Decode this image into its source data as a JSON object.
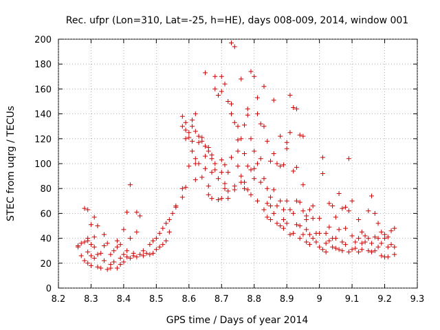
{
  "chart_data": {
    "type": "scatter",
    "title": "Rec. ufpr (Lon=310, Lat=-25, h=HE), days 008-009, 2014, window 001",
    "xlabel": "GPS time / Days of year 2014",
    "ylabel": "STEC from uqrg / TECUs",
    "xlim": [
      8.2,
      9.3
    ],
    "ylim": [
      0,
      200
    ],
    "x_ticks": [
      8.2,
      8.3,
      8.4,
      8.5,
      8.6,
      8.7,
      8.8,
      8.9,
      9.0,
      9.1,
      9.2,
      9.3
    ],
    "x_tick_labels": [
      "8.2",
      "8.3",
      "8.4",
      "8.5",
      "8.6",
      "8.7",
      "8.8",
      "8.9",
      "9",
      "9.1",
      "9.2",
      "9.3"
    ],
    "y_ticks": [
      0,
      20,
      40,
      60,
      80,
      100,
      120,
      140,
      160,
      180,
      200
    ],
    "y_tick_labels": [
      "0",
      "20",
      "40",
      "60",
      "80",
      "100",
      "120",
      "140",
      "160",
      "180",
      "200"
    ],
    "grid": true,
    "marker": "+",
    "color": "#cc0000",
    "series": [
      {
        "name": "STEC",
        "points": [
          [
            8.26,
            34
          ],
          [
            8.26,
            33
          ],
          [
            8.27,
            36
          ],
          [
            8.27,
            26
          ],
          [
            8.28,
            37
          ],
          [
            8.28,
            22
          ],
          [
            8.28,
            64
          ],
          [
            8.29,
            38
          ],
          [
            8.29,
            40
          ],
          [
            8.29,
            29
          ],
          [
            8.29,
            20
          ],
          [
            8.29,
            63
          ],
          [
            8.3,
            51
          ],
          [
            8.3,
            35
          ],
          [
            8.3,
            26
          ],
          [
            8.3,
            18
          ],
          [
            8.31,
            41
          ],
          [
            8.31,
            33
          ],
          [
            8.31,
            57
          ],
          [
            8.31,
            24
          ],
          [
            8.32,
            17
          ],
          [
            8.32,
            50
          ],
          [
            8.32,
            27
          ],
          [
            8.33,
            28
          ],
          [
            8.33,
            16
          ],
          [
            8.34,
            43
          ],
          [
            8.34,
            34
          ],
          [
            8.34,
            22
          ],
          [
            8.35,
            15
          ],
          [
            8.35,
            36
          ],
          [
            8.36,
            27
          ],
          [
            8.36,
            19
          ],
          [
            8.36,
            16
          ],
          [
            8.37,
            21
          ],
          [
            8.37,
            30
          ],
          [
            8.38,
            16
          ],
          [
            8.38,
            38
          ],
          [
            8.38,
            33
          ],
          [
            8.39,
            35
          ],
          [
            8.39,
            19
          ],
          [
            8.39,
            24
          ],
          [
            8.4,
            47
          ],
          [
            8.4,
            27
          ],
          [
            8.4,
            21
          ],
          [
            8.41,
            61
          ],
          [
            8.41,
            30
          ],
          [
            8.41,
            25
          ],
          [
            8.42,
            83
          ],
          [
            8.42,
            40
          ],
          [
            8.42,
            24
          ],
          [
            8.43,
            26
          ],
          [
            8.43,
            28
          ],
          [
            8.44,
            61
          ],
          [
            8.44,
            45
          ],
          [
            8.44,
            25
          ],
          [
            8.45,
            58
          ],
          [
            8.45,
            27
          ],
          [
            8.46,
            30
          ],
          [
            8.46,
            26
          ],
          [
            8.47,
            28
          ],
          [
            8.48,
            35
          ],
          [
            8.48,
            27
          ],
          [
            8.49,
            38
          ],
          [
            8.49,
            28
          ],
          [
            8.5,
            31
          ],
          [
            8.5,
            40
          ],
          [
            8.51,
            44
          ],
          [
            8.51,
            33
          ],
          [
            8.52,
            48
          ],
          [
            8.52,
            35
          ],
          [
            8.53,
            52
          ],
          [
            8.53,
            38
          ],
          [
            8.54,
            55
          ],
          [
            8.54,
            45
          ],
          [
            8.55,
            60
          ],
          [
            8.56,
            65
          ],
          [
            8.56,
            66
          ],
          [
            8.58,
            73
          ],
          [
            8.58,
            80
          ],
          [
            8.58,
            130
          ],
          [
            8.58,
            138
          ],
          [
            8.59,
            81
          ],
          [
            8.59,
            120
          ],
          [
            8.59,
            133
          ],
          [
            8.59,
            127
          ],
          [
            8.6,
            98
          ],
          [
            8.6,
            121
          ],
          [
            8.6,
            125
          ],
          [
            8.61,
            118
          ],
          [
            8.61,
            110
          ],
          [
            8.61,
            135
          ],
          [
            8.61,
            130
          ],
          [
            8.62,
            140
          ],
          [
            8.62,
            104
          ],
          [
            8.62,
            100
          ],
          [
            8.62,
            126
          ],
          [
            8.62,
            87
          ],
          [
            8.63,
            117
          ],
          [
            8.63,
            122
          ],
          [
            8.63,
            100
          ],
          [
            8.64,
            89
          ],
          [
            8.64,
            121
          ],
          [
            8.64,
            118
          ],
          [
            8.65,
            173
          ],
          [
            8.65,
            114
          ],
          [
            8.65,
            106
          ],
          [
            8.65,
            96
          ],
          [
            8.66,
            82
          ],
          [
            8.66,
            75
          ],
          [
            8.66,
            113
          ],
          [
            8.66,
            110
          ],
          [
            8.67,
            93
          ],
          [
            8.67,
            107
          ],
          [
            8.67,
            104
          ],
          [
            8.67,
            72
          ],
          [
            8.68,
            160
          ],
          [
            8.68,
            170
          ],
          [
            8.68,
            100
          ],
          [
            8.68,
            95
          ],
          [
            8.69,
            71
          ],
          [
            8.69,
            88
          ],
          [
            8.69,
            155
          ],
          [
            8.7,
            170
          ],
          [
            8.7,
            158
          ],
          [
            8.7,
            103
          ],
          [
            8.7,
            93
          ],
          [
            8.7,
            72
          ],
          [
            8.71,
            164
          ],
          [
            8.71,
            84
          ],
          [
            8.71,
            99
          ],
          [
            8.71,
            80
          ],
          [
            8.72,
            150
          ],
          [
            8.72,
            93
          ],
          [
            8.72,
            78
          ],
          [
            8.72,
            72
          ],
          [
            8.73,
            197
          ],
          [
            8.73,
            105
          ],
          [
            8.73,
            148
          ],
          [
            8.73,
            140
          ],
          [
            8.74,
            194
          ],
          [
            8.74,
            133
          ],
          [
            8.74,
            82
          ],
          [
            8.74,
            79
          ],
          [
            8.75,
            130
          ],
          [
            8.75,
            119
          ],
          [
            8.75,
            110
          ],
          [
            8.75,
            98
          ],
          [
            8.76,
            168
          ],
          [
            8.76,
            120
          ],
          [
            8.76,
            90
          ],
          [
            8.76,
            85
          ],
          [
            8.77,
            85
          ],
          [
            8.77,
            80
          ],
          [
            8.77,
            108
          ],
          [
            8.77,
            131
          ],
          [
            8.78,
            144
          ],
          [
            8.78,
            139
          ],
          [
            8.78,
            98
          ],
          [
            8.78,
            79
          ],
          [
            8.79,
            174
          ],
          [
            8.79,
            120
          ],
          [
            8.79,
            75
          ],
          [
            8.79,
            95
          ],
          [
            8.8,
            170
          ],
          [
            8.8,
            110
          ],
          [
            8.8,
            88
          ],
          [
            8.8,
            96
          ],
          [
            8.81,
            153
          ],
          [
            8.81,
            140
          ],
          [
            8.81,
            100
          ],
          [
            8.81,
            70
          ],
          [
            8.82,
            132
          ],
          [
            8.82,
            85
          ],
          [
            8.82,
            104
          ],
          [
            8.83,
            162
          ],
          [
            8.83,
            130
          ],
          [
            8.83,
            88
          ],
          [
            8.83,
            63
          ],
          [
            8.84,
            118
          ],
          [
            8.84,
            80
          ],
          [
            8.84,
            68
          ],
          [
            8.84,
            57
          ],
          [
            8.85,
            102
          ],
          [
            8.85,
            66
          ],
          [
            8.85,
            73
          ],
          [
            8.85,
            55
          ],
          [
            8.86,
            151
          ],
          [
            8.86,
            108
          ],
          [
            8.86,
            79
          ],
          [
            8.86,
            60
          ],
          [
            8.87,
            100
          ],
          [
            8.87,
            66
          ],
          [
            8.87,
            52
          ],
          [
            8.88,
            122
          ],
          [
            8.88,
            98
          ],
          [
            8.88,
            70
          ],
          [
            8.88,
            50
          ],
          [
            8.89,
            99
          ],
          [
            8.89,
            63
          ],
          [
            8.89,
            55
          ],
          [
            8.89,
            48
          ],
          [
            8.9,
            117
          ],
          [
            8.9,
            112
          ],
          [
            8.9,
            70
          ],
          [
            8.9,
            52
          ],
          [
            8.91,
            155
          ],
          [
            8.91,
            125
          ],
          [
            8.91,
            63
          ],
          [
            8.91,
            43
          ],
          [
            8.92,
            145
          ],
          [
            8.92,
            94
          ],
          [
            8.92,
            60
          ],
          [
            8.92,
            44
          ],
          [
            8.93,
            144
          ],
          [
            8.93,
            97
          ],
          [
            8.93,
            70
          ],
          [
            8.93,
            51
          ],
          [
            8.94,
            123
          ],
          [
            8.94,
            69
          ],
          [
            8.94,
            50
          ],
          [
            8.94,
            40
          ],
          [
            8.95,
            122
          ],
          [
            8.95,
            83
          ],
          [
            8.95,
            62
          ],
          [
            8.95,
            43
          ],
          [
            8.96,
            55
          ],
          [
            8.96,
            58
          ],
          [
            8.96,
            47
          ],
          [
            8.96,
            37
          ],
          [
            8.97,
            63
          ],
          [
            8.97,
            43
          ],
          [
            8.97,
            35
          ],
          [
            8.98,
            66
          ],
          [
            8.98,
            56
          ],
          [
            8.98,
            40
          ],
          [
            8.99,
            44
          ],
          [
            8.99,
            37
          ],
          [
            9.0,
            44
          ],
          [
            9.0,
            56
          ],
          [
            9.0,
            33
          ],
          [
            9.01,
            105
          ],
          [
            9.01,
            92
          ],
          [
            9.01,
            31
          ],
          [
            9.02,
            44
          ],
          [
            9.02,
            36
          ],
          [
            9.02,
            29
          ],
          [
            9.03,
            68
          ],
          [
            9.03,
            49
          ],
          [
            9.03,
            38
          ],
          [
            9.04,
            66
          ],
          [
            9.04,
            40
          ],
          [
            9.04,
            33
          ],
          [
            9.05,
            57
          ],
          [
            9.05,
            40
          ],
          [
            9.05,
            32
          ],
          [
            9.06,
            76
          ],
          [
            9.06,
            47
          ],
          [
            9.06,
            31
          ],
          [
            9.07,
            64
          ],
          [
            9.07,
            37
          ],
          [
            9.07,
            30
          ],
          [
            9.08,
            65
          ],
          [
            9.08,
            48
          ],
          [
            9.08,
            35
          ],
          [
            9.09,
            104
          ],
          [
            9.09,
            62
          ],
          [
            9.09,
            29
          ],
          [
            9.1,
            70
          ],
          [
            9.1,
            42
          ],
          [
            9.1,
            31
          ],
          [
            9.11,
            37
          ],
          [
            9.11,
            32
          ],
          [
            9.12,
            55
          ],
          [
            9.12,
            40
          ],
          [
            9.12,
            29
          ],
          [
            9.13,
            45
          ],
          [
            9.13,
            36
          ],
          [
            9.13,
            31
          ],
          [
            9.14,
            42
          ],
          [
            9.14,
            37
          ],
          [
            9.15,
            62
          ],
          [
            9.15,
            40
          ],
          [
            9.15,
            30
          ],
          [
            9.16,
            74
          ],
          [
            9.16,
            36
          ],
          [
            9.16,
            29
          ],
          [
            9.17,
            60
          ],
          [
            9.17,
            41
          ],
          [
            9.17,
            30
          ],
          [
            9.18,
            52
          ],
          [
            9.18,
            40
          ],
          [
            9.18,
            33
          ],
          [
            9.19,
            45
          ],
          [
            9.19,
            36
          ],
          [
            9.19,
            26
          ],
          [
            9.2,
            43
          ],
          [
            9.2,
            40
          ],
          [
            9.2,
            25
          ],
          [
            9.21,
            41
          ],
          [
            9.21,
            33
          ],
          [
            9.21,
            25
          ],
          [
            9.22,
            46
          ],
          [
            9.22,
            35
          ],
          [
            9.23,
            48
          ],
          [
            9.23,
            33
          ],
          [
            9.23,
            27
          ]
        ]
      }
    ]
  }
}
